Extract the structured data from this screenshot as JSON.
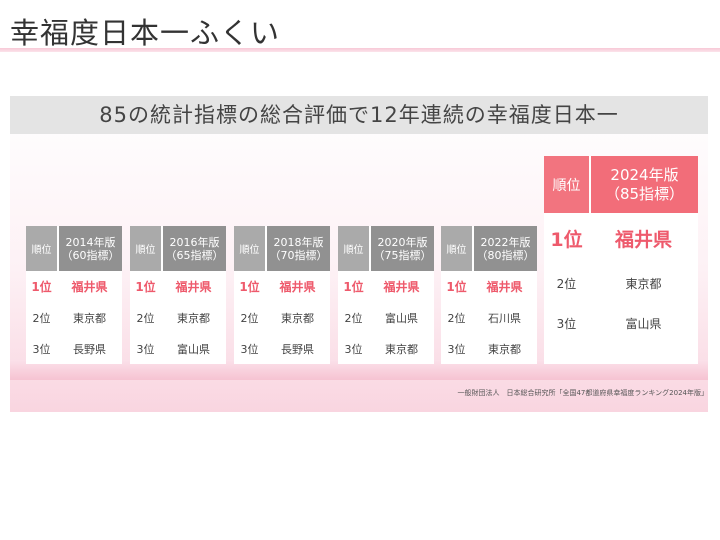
{
  "slide_title": "幸福度日本一ふくい",
  "banner": "85の統計指標の総合評価で12年連続の幸福度日本一",
  "rank_header": "順位",
  "small_cards": [
    {
      "year": "2014年版",
      "count": "（60指標）",
      "rows": [
        {
          "rank": "1位",
          "pref": "福井県"
        },
        {
          "rank": "2位",
          "pref": "東京都"
        },
        {
          "rank": "3位",
          "pref": "長野県"
        }
      ]
    },
    {
      "year": "2016年版",
      "count": "（65指標）",
      "rows": [
        {
          "rank": "1位",
          "pref": "福井県"
        },
        {
          "rank": "2位",
          "pref": "東京都"
        },
        {
          "rank": "3位",
          "pref": "富山県"
        }
      ]
    },
    {
      "year": "2018年版",
      "count": "（70指標）",
      "rows": [
        {
          "rank": "1位",
          "pref": "福井県"
        },
        {
          "rank": "2位",
          "pref": "東京都"
        },
        {
          "rank": "3位",
          "pref": "長野県"
        }
      ]
    },
    {
      "year": "2020年版",
      "count": "（75指標）",
      "rows": [
        {
          "rank": "1位",
          "pref": "福井県"
        },
        {
          "rank": "2位",
          "pref": "富山県"
        },
        {
          "rank": "3位",
          "pref": "東京都"
        }
      ]
    },
    {
      "year": "2022年版",
      "count": "（80指標）",
      "rows": [
        {
          "rank": "1位",
          "pref": "福井県"
        },
        {
          "rank": "2位",
          "pref": "石川県"
        },
        {
          "rank": "3位",
          "pref": "東京都"
        }
      ]
    }
  ],
  "featured_card": {
    "year": "2024年版",
    "count": "（85指標）",
    "rows": [
      {
        "rank": "1位",
        "pref": "福井県"
      },
      {
        "rank": "2位",
        "pref": "東京都"
      },
      {
        "rank": "3位",
        "pref": "富山県"
      }
    ]
  },
  "source": "一般財団法人　日本総合研究所「全国47都道府県幸福度ランキング2024年版」",
  "colors": {
    "accent": "#ee5a6c",
    "header_gray": "#919191",
    "featured_header": "#f26d79"
  }
}
